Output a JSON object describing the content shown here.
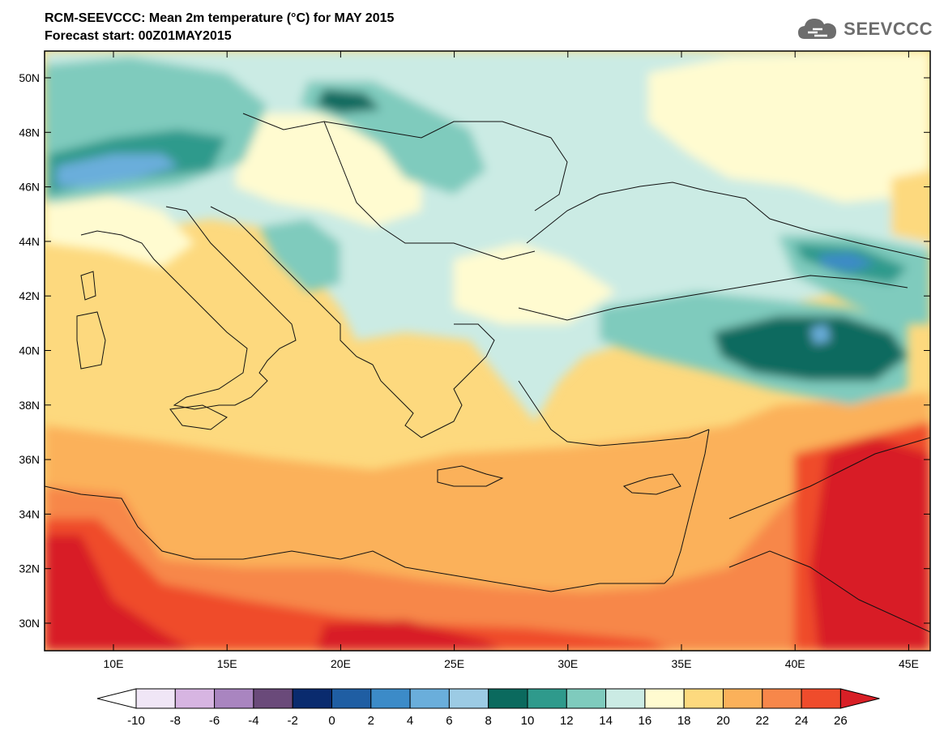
{
  "header": {
    "title": "RCM-SEEVCCC: Mean 2m temperature (°C) for MAY 2015",
    "subtitle": "Forecast start: 00Z01MAY2015"
  },
  "logo": {
    "text": "SEEVCCC",
    "icon": "cloud-logo-icon"
  },
  "map": {
    "lat_labels": [
      "50N",
      "48N",
      "46N",
      "44N",
      "42N",
      "40N",
      "38N",
      "36N",
      "34N",
      "32N",
      "30N"
    ],
    "lon_labels": [
      "10E",
      "15E",
      "20E",
      "25E",
      "30E",
      "35E",
      "40E",
      "45E"
    ]
  },
  "colorbar": {
    "labels": [
      "-10",
      "-8",
      "-6",
      "-4",
      "-2",
      "0",
      "2",
      "4",
      "6",
      "8",
      "10",
      "12",
      "14",
      "16",
      "18",
      "20",
      "22",
      "24",
      "26"
    ],
    "colors": [
      "#ffffff",
      "#f0e6f6",
      "#d7b5e2",
      "#a985c0",
      "#6a4a7a",
      "#0a2b6e",
      "#1f5ea3",
      "#3c8bc8",
      "#6aaedb",
      "#9ccbe4",
      "#0b6a5e",
      "#2f9a8c",
      "#7fcbbd",
      "#cbebe4",
      "#fffbd0",
      "#fdd97e",
      "#fbb15a",
      "#f7874a",
      "#ef4c2c",
      "#d81f26"
    ]
  }
}
